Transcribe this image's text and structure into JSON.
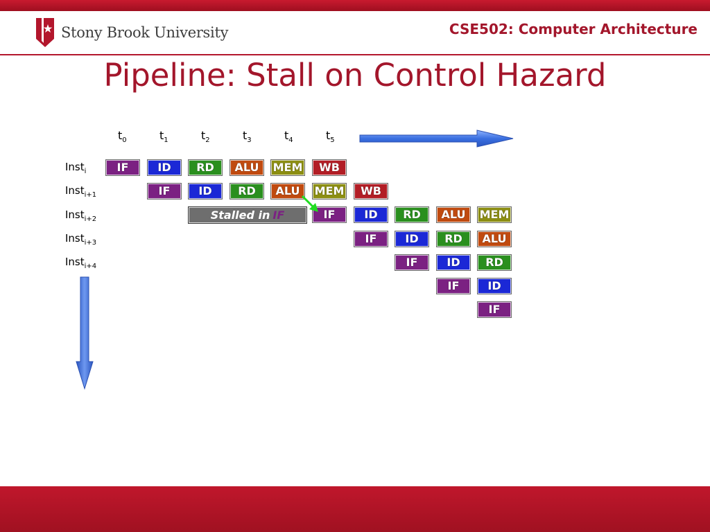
{
  "header": {
    "university": "Stony Brook University",
    "course": "CSE502: Computer Architecture"
  },
  "slide": {
    "title": "Pipeline: Stall on Control Hazard"
  },
  "diagram": {
    "time_labels": [
      {
        "base": "t",
        "sub": "0"
      },
      {
        "base": "t",
        "sub": "1"
      },
      {
        "base": "t",
        "sub": "2"
      },
      {
        "base": "t",
        "sub": "3"
      },
      {
        "base": "t",
        "sub": "4"
      },
      {
        "base": "t",
        "sub": "5"
      }
    ],
    "instructions": [
      {
        "base": "Inst",
        "sub": "i"
      },
      {
        "base": "Inst",
        "sub": "i+1"
      },
      {
        "base": "Inst",
        "sub": "i+2"
      },
      {
        "base": "Inst",
        "sub": "i+3"
      },
      {
        "base": "Inst",
        "sub": "i+4"
      }
    ],
    "rows": [
      {
        "start": 0,
        "stages": [
          "IF",
          "ID",
          "RD",
          "ALU",
          "MEM",
          "WB"
        ]
      },
      {
        "start": 1,
        "stages": [
          "IF",
          "ID",
          "RD",
          "ALU",
          "MEM",
          "WB"
        ]
      },
      {
        "start": 5,
        "stages": [
          "IF",
          "ID",
          "RD",
          "ALU",
          "MEM"
        ]
      },
      {
        "start": 6,
        "stages": [
          "IF",
          "ID",
          "RD",
          "ALU"
        ]
      },
      {
        "start": 7,
        "stages": [
          "IF",
          "ID",
          "RD"
        ]
      },
      {
        "start": 8,
        "stages": [
          "IF",
          "ID"
        ]
      },
      {
        "start": 9,
        "stages": [
          "IF"
        ]
      }
    ],
    "stall_box": {
      "text": "Stalled in",
      "highlight": "IF"
    },
    "colors": {
      "IF": "#7b2182",
      "ID": "#1b28d6",
      "RD": "#2a8f1e",
      "ALU": "#c04a0f",
      "MEM": "#8c8e12",
      "WB": "#b21d25",
      "arrow": "#3a6fe0",
      "stall_arrow": "#22dd22",
      "accent": "#a3162b"
    }
  }
}
